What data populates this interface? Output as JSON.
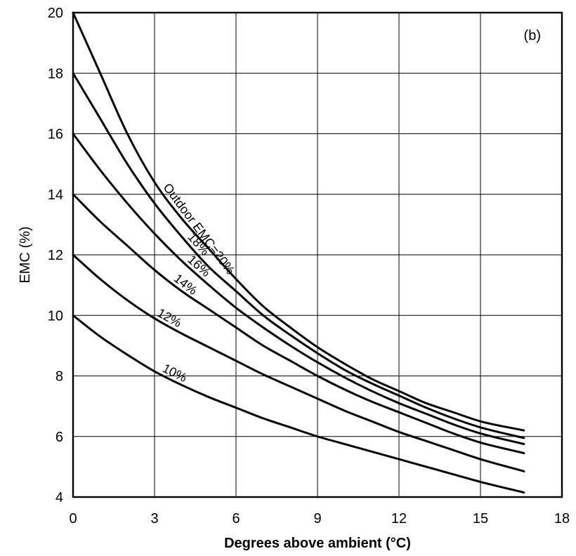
{
  "chart_data": {
    "type": "line",
    "title": "",
    "panel_label": "(b)",
    "xlabel": "Degrees above ambient (°C)",
    "ylabel": "EMC (%)",
    "xlim": [
      0,
      18
    ],
    "ylim": [
      4,
      20
    ],
    "xticks": [
      0,
      3,
      6,
      9,
      12,
      15,
      18
    ],
    "yticks": [
      4,
      6,
      8,
      10,
      12,
      14,
      16,
      18,
      20
    ],
    "grid": true,
    "series": [
      {
        "label": "Outdoor EMC=20%",
        "label_at_x": 3.2,
        "x": [
          0,
          1,
          2,
          3,
          4,
          5,
          6,
          7,
          8,
          9,
          10,
          11,
          12,
          13,
          14,
          15,
          16.6
        ],
        "y": [
          20.0,
          18.0,
          16.0,
          14.4,
          13.2,
          12.2,
          11.2,
          10.3,
          9.6,
          8.95,
          8.4,
          7.9,
          7.5,
          7.1,
          6.8,
          6.5,
          6.2
        ]
      },
      {
        "label": "18%",
        "label_at_x": 4.1,
        "x": [
          0,
          1,
          2,
          3,
          4,
          5,
          6,
          7,
          8,
          9,
          10,
          11,
          12,
          13,
          14,
          15,
          16.6
        ],
        "y": [
          18.0,
          16.5,
          15.0,
          13.7,
          12.6,
          11.6,
          10.8,
          10.0,
          9.35,
          8.75,
          8.2,
          7.75,
          7.35,
          6.95,
          6.6,
          6.3,
          5.95
        ]
      },
      {
        "label": "16%",
        "label_at_x": 4.1,
        "x": [
          0,
          1,
          2,
          3,
          4,
          5,
          6,
          7,
          8,
          9,
          10,
          11,
          12,
          13,
          14,
          15,
          16.6
        ],
        "y": [
          16.0,
          14.8,
          13.7,
          12.7,
          11.8,
          11.0,
          10.25,
          9.6,
          9.0,
          8.45,
          7.95,
          7.5,
          7.1,
          6.75,
          6.4,
          6.1,
          5.75
        ]
      },
      {
        "label": "14%",
        "label_at_x": 3.6,
        "x": [
          0,
          1,
          2,
          3,
          4,
          5,
          6,
          7,
          8,
          9,
          10,
          11,
          12,
          13,
          14,
          15,
          16.6
        ],
        "y": [
          14.0,
          13.1,
          12.3,
          11.5,
          10.8,
          10.2,
          9.6,
          9.0,
          8.5,
          8.0,
          7.55,
          7.15,
          6.8,
          6.45,
          6.1,
          5.8,
          5.45
        ]
      },
      {
        "label": "12%",
        "label_at_x": 3.0,
        "x": [
          0,
          1,
          2,
          3,
          4,
          5,
          6,
          7,
          8,
          9,
          10,
          11,
          12,
          13,
          14,
          15,
          16.6
        ],
        "y": [
          12.0,
          11.2,
          10.5,
          9.9,
          9.4,
          8.95,
          8.5,
          8.05,
          7.65,
          7.25,
          6.85,
          6.5,
          6.15,
          5.85,
          5.55,
          5.25,
          4.85
        ]
      },
      {
        "label": "10%",
        "label_at_x": 3.2,
        "x": [
          0,
          1,
          2,
          3,
          4,
          5,
          6,
          7,
          8,
          9,
          10,
          11,
          12,
          13,
          14,
          15,
          16.6
        ],
        "y": [
          10.0,
          9.3,
          8.7,
          8.15,
          7.7,
          7.3,
          6.95,
          6.6,
          6.3,
          6.0,
          5.75,
          5.5,
          5.25,
          5.0,
          4.75,
          4.5,
          4.15
        ]
      }
    ]
  }
}
